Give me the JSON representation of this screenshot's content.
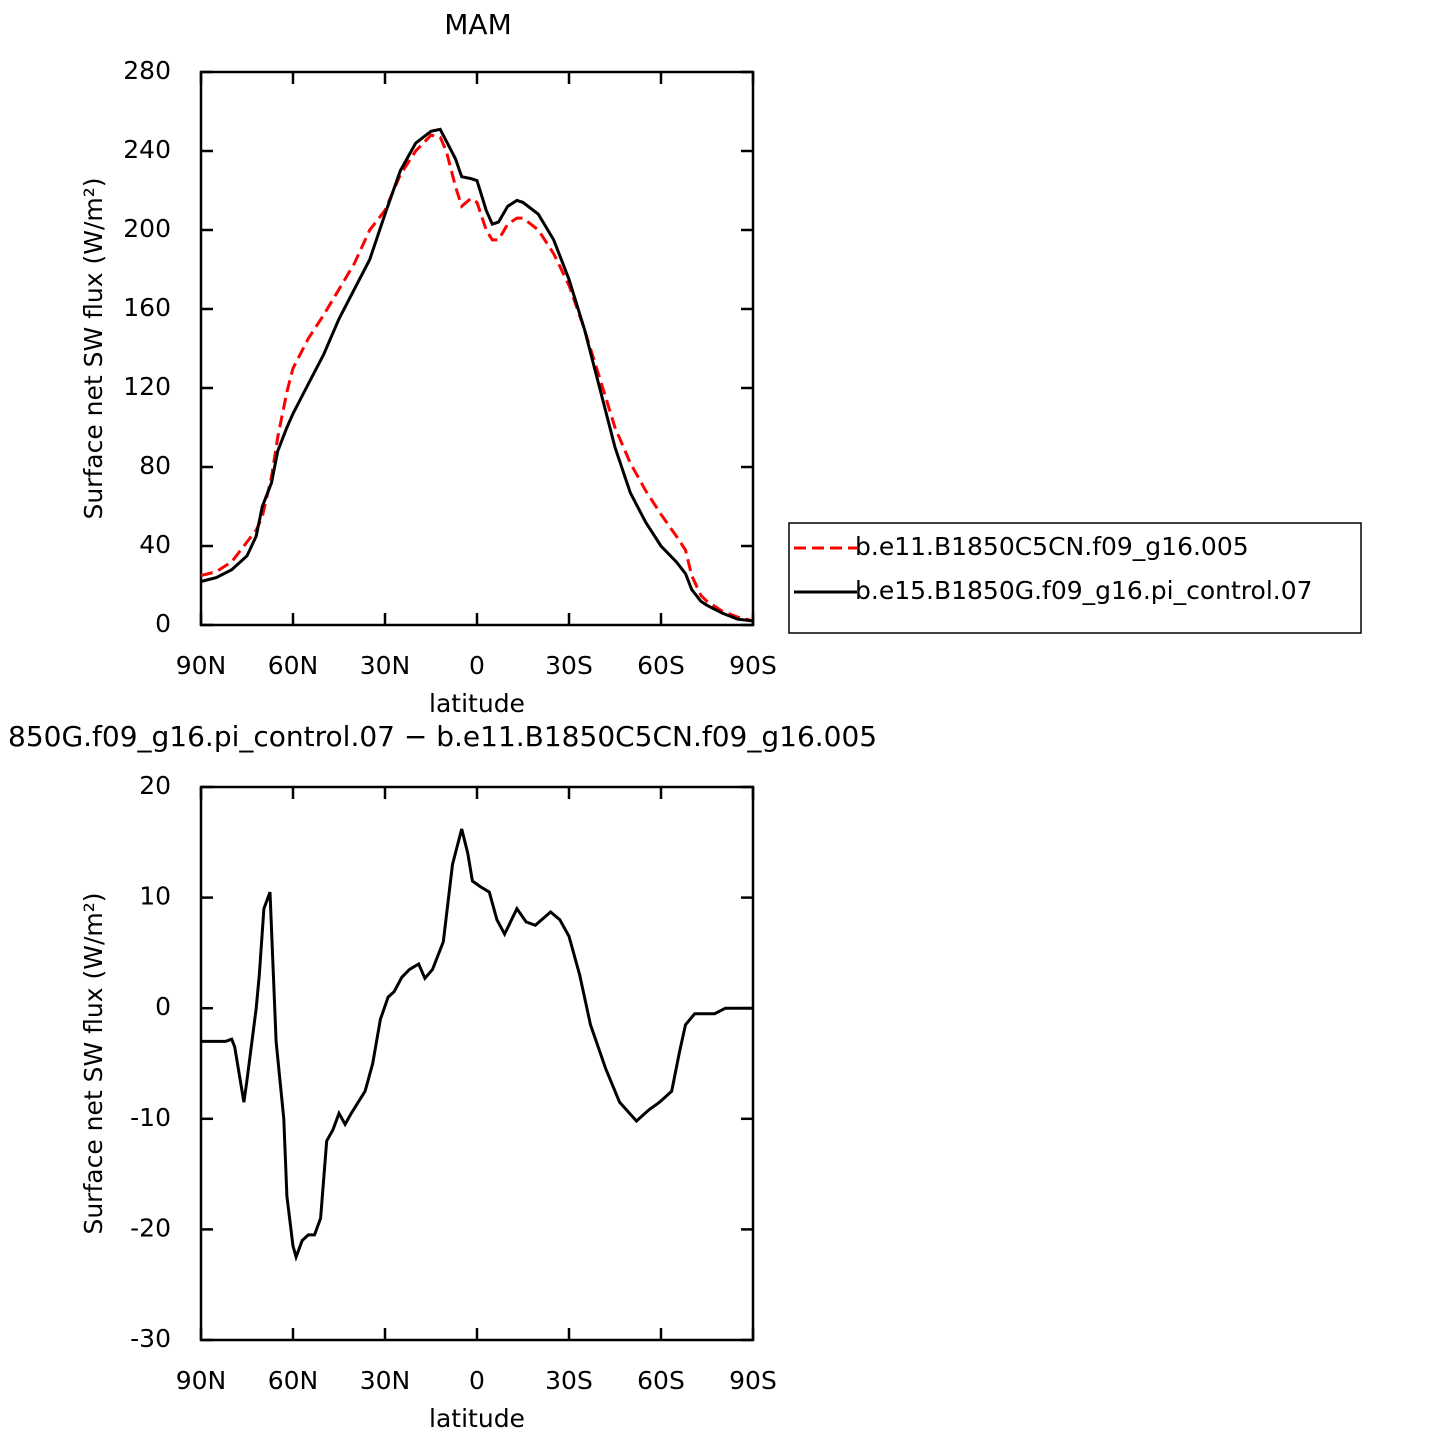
{
  "chart_data": [
    {
      "type": "line",
      "title": "MAM",
      "xlabel": "latitude",
      "ylabel": "Surface net SW flux (W/m²)",
      "x": [
        90,
        85,
        80,
        75,
        72,
        70,
        67,
        65,
        62,
        60,
        55,
        50,
        45,
        40,
        35,
        30,
        25,
        20,
        15,
        12,
        10,
        7,
        5,
        2,
        0,
        -3,
        -5,
        -7,
        -10,
        -13,
        -15,
        -20,
        -25,
        -30,
        -35,
        -40,
        -45,
        -50,
        -55,
        -60,
        -65,
        -68,
        -70,
        -73,
        -75,
        -80,
        -85,
        -90
      ],
      "series": [
        {
          "name": "b.e11.B1850C5CN.f09_g16.005",
          "color": "#ff0000",
          "line_style": "dashed",
          "values": [
            25,
            27,
            32,
            42,
            48,
            55,
            75,
            95,
            118,
            130,
            145,
            157,
            170,
            183,
            200,
            210,
            228,
            240,
            248,
            247,
            240,
            222,
            212,
            216,
            214,
            200,
            195,
            195,
            203,
            206,
            206,
            200,
            188,
            172,
            150,
            125,
            100,
            82,
            68,
            56,
            45,
            38,
            25,
            15,
            12,
            7,
            4,
            2
          ]
        },
        {
          "name": "b.e15.B1850G.f09_g16.pi_control.07",
          "color": "#000000",
          "line_style": "solid",
          "values": [
            22,
            24,
            28,
            35,
            45,
            60,
            72,
            88,
            100,
            107,
            122,
            137,
            155,
            170,
            185,
            208,
            230,
            244,
            250,
            251,
            245,
            236,
            227,
            226,
            225,
            210,
            203,
            204,
            212,
            215,
            214,
            208,
            195,
            175,
            150,
            120,
            90,
            67,
            52,
            40,
            32,
            26,
            18,
            12,
            10,
            6,
            3,
            2
          ]
        }
      ],
      "xlim": [
        90,
        -90
      ],
      "xticks": [
        {
          "value": 90,
          "label": "90N"
        },
        {
          "value": 60,
          "label": "60N"
        },
        {
          "value": 30,
          "label": "30N"
        },
        0,
        {
          "value": -30,
          "label": "30S"
        },
        {
          "value": -60,
          "label": "60S"
        },
        {
          "value": -90,
          "label": "90S"
        }
      ],
      "ylim": [
        0,
        280
      ],
      "yticks": [
        0,
        40,
        80,
        120,
        160,
        200,
        240,
        280
      ],
      "legend": "outside-right"
    },
    {
      "type": "line",
      "title": "850G.f09_g16.pi_control.07 − b.e11.B1850C5CN.f09_g16.005",
      "xlabel": "latitude",
      "ylabel": "Surface net SW flux (W/m²)",
      "x": [
        90,
        82,
        80,
        79,
        76,
        75,
        72,
        71,
        69.5,
        67.5,
        65.5,
        63,
        62,
        60,
        59,
        57,
        55,
        53,
        51,
        49,
        47,
        45,
        43,
        41,
        36.5,
        34,
        31.5,
        29,
        27,
        24.5,
        22,
        19,
        17,
        14.5,
        11,
        8,
        5,
        3,
        1.5,
        -1,
        -4,
        -6.5,
        -9,
        -13,
        -16,
        -19,
        -24,
        -27,
        -30,
        -33.5,
        -37,
        -42,
        -46.5,
        -52,
        -56,
        -59.5,
        -63.5,
        -66,
        -68,
        -71,
        -74,
        -77.5,
        -81,
        -90
      ],
      "series": [
        {
          "color": "#000000",
          "line_style": "solid",
          "values": [
            -3,
            -3,
            -2.8,
            -3.5,
            -8.5,
            -6.5,
            0,
            3,
            9,
            10.5,
            -3,
            -10,
            -17,
            -21.5,
            -22.5,
            -21,
            -20.5,
            -20.5,
            -19,
            -12,
            -11,
            -9.5,
            -10.5,
            -9.5,
            -7.5,
            -5,
            -1,
            1,
            1.5,
            2.8,
            3.5,
            4,
            2.7,
            3.5,
            6,
            13,
            16.2,
            14,
            11.5,
            11,
            10.5,
            8,
            6.7,
            9,
            7.8,
            7.5,
            8.7,
            8,
            6.5,
            3,
            -1.5,
            -5.5,
            -8.5,
            -10.2,
            -9.2,
            -8.5,
            -7.5,
            -4,
            -1.5,
            -0.5,
            -0.5,
            -0.5,
            0,
            0
          ]
        }
      ],
      "xlim": [
        90,
        -90
      ],
      "xticks": [
        {
          "value": 90,
          "label": "90N"
        },
        {
          "value": 60,
          "label": "60N"
        },
        {
          "value": 30,
          "label": "30N"
        },
        0,
        {
          "value": -30,
          "label": "30S"
        },
        {
          "value": -60,
          "label": "60S"
        },
        {
          "value": -90,
          "label": "90S"
        }
      ],
      "ylim": [
        -30,
        20
      ],
      "yticks": [
        -30,
        -20,
        -10,
        0,
        10,
        20
      ]
    }
  ]
}
